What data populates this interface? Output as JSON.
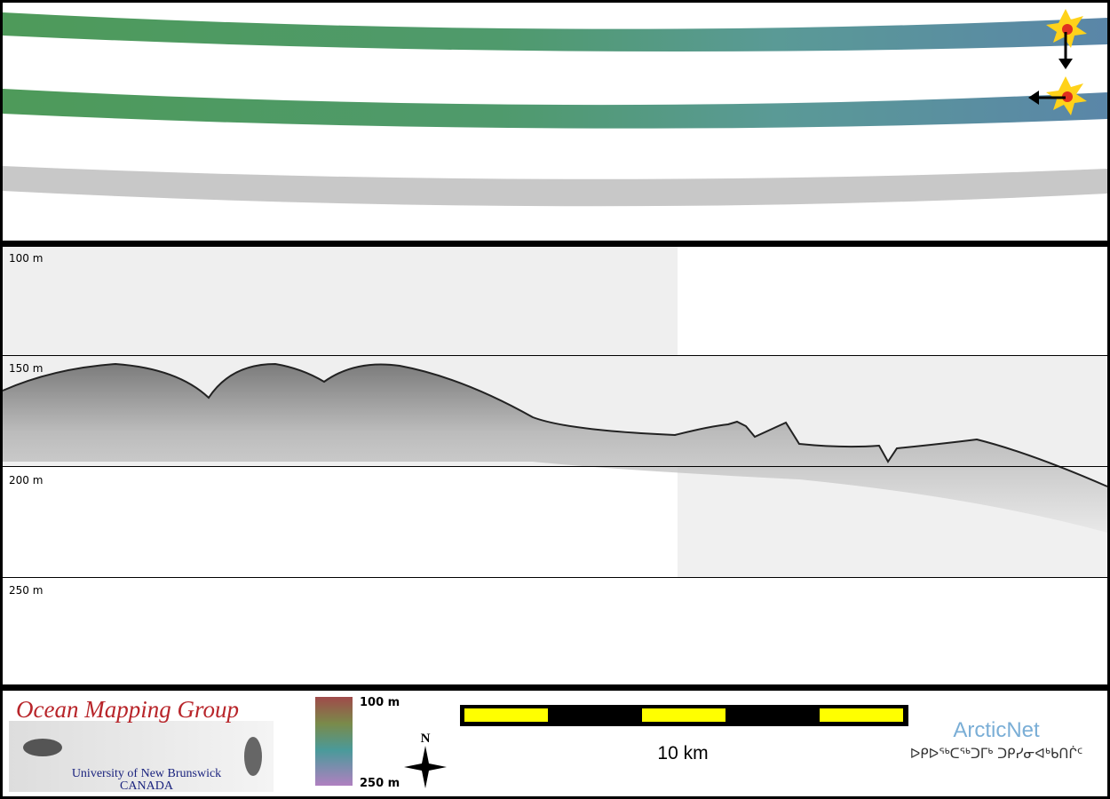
{
  "depth_labels": [
    "100 m",
    "150 m",
    "200 m",
    "250 m"
  ],
  "logo": {
    "title": "Ocean Mapping Group",
    "subtitle": "University of New Brunswick",
    "country": "CANADA"
  },
  "colorbar": {
    "top": "100 m",
    "bottom": "250 m"
  },
  "north": "N",
  "scale_bar": "10 km",
  "partner": {
    "name": "ArcticNet",
    "syllabics": "ᐅᑭᐅᖅᑕᖅᑐᒥᒃ ᑐᑭᓯᓂᐊᒃᑲᑎᒌᑦ"
  }
}
